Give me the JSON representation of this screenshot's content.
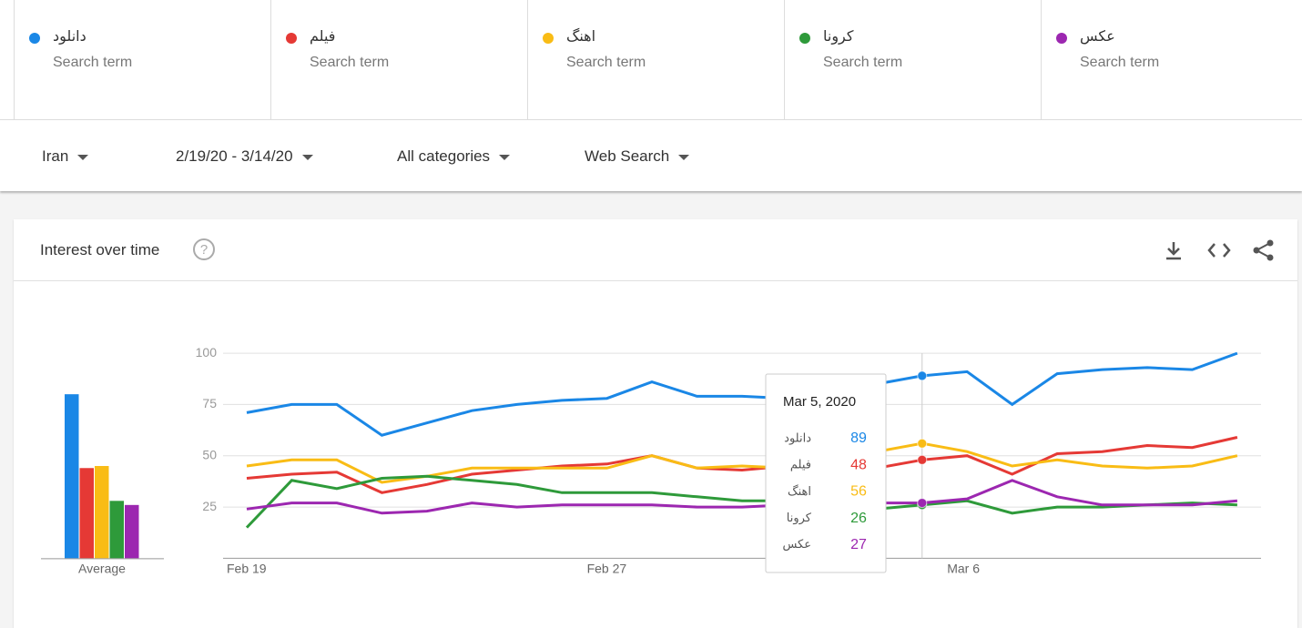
{
  "terms": {
    "label": "Search term"
  },
  "filters": [
    "Iran",
    "2/19/20 - 3/14/20",
    "All categories",
    "Web Search"
  ],
  "card": {
    "title": "Interest over time"
  },
  "average": {
    "label": "Average"
  },
  "tooltip": {
    "title": "Mar 5, 2020"
  },
  "chart_data": {
    "type": "line",
    "categories": [
      "Feb 19",
      null,
      null,
      null,
      null,
      null,
      null,
      null,
      "Feb 27",
      null,
      null,
      null,
      null,
      null,
      null,
      null,
      "Mar 6",
      null,
      null,
      null,
      null,
      null,
      null
    ],
    "ylim": [
      0,
      100
    ],
    "yticks": [
      25,
      50,
      75,
      100
    ],
    "grid": true,
    "series": [
      {
        "name": "دانلود",
        "color": "#1a87e6",
        "average": 80,
        "values": [
          71,
          75,
          75,
          60,
          66,
          72,
          75,
          77,
          78,
          86,
          79,
          79,
          78,
          81,
          85,
          89,
          91,
          75,
          90,
          92,
          93,
          92,
          100
        ]
      },
      {
        "name": "فیلم",
        "color": "#e53935",
        "average": 44,
        "values": [
          39,
          41,
          42,
          32,
          36,
          41,
          43,
          45,
          46,
          50,
          44,
          43,
          45,
          44,
          44,
          48,
          50,
          41,
          51,
          52,
          55,
          54,
          59
        ]
      },
      {
        "name": "اهنگ",
        "color": "#f9bc15",
        "average": 45,
        "values": [
          45,
          48,
          48,
          37,
          40,
          44,
          44,
          44,
          44,
          50,
          44,
          45,
          44,
          48,
          52,
          56,
          52,
          45,
          48,
          45,
          44,
          45,
          50
        ]
      },
      {
        "name": "کرونا",
        "color": "#2e9a3a",
        "average": 28,
        "values": [
          15,
          38,
          34,
          39,
          40,
          38,
          36,
          32,
          32,
          32,
          30,
          28,
          28,
          26,
          24,
          26,
          28,
          22,
          25,
          25,
          26,
          27,
          26
        ]
      },
      {
        "name": "عکس",
        "color": "#9c27b0",
        "average": 26,
        "values": [
          24,
          27,
          27,
          22,
          23,
          27,
          25,
          26,
          26,
          26,
          25,
          25,
          26,
          27,
          27,
          27,
          29,
          38,
          30,
          26,
          26,
          26,
          28
        ]
      }
    ]
  }
}
